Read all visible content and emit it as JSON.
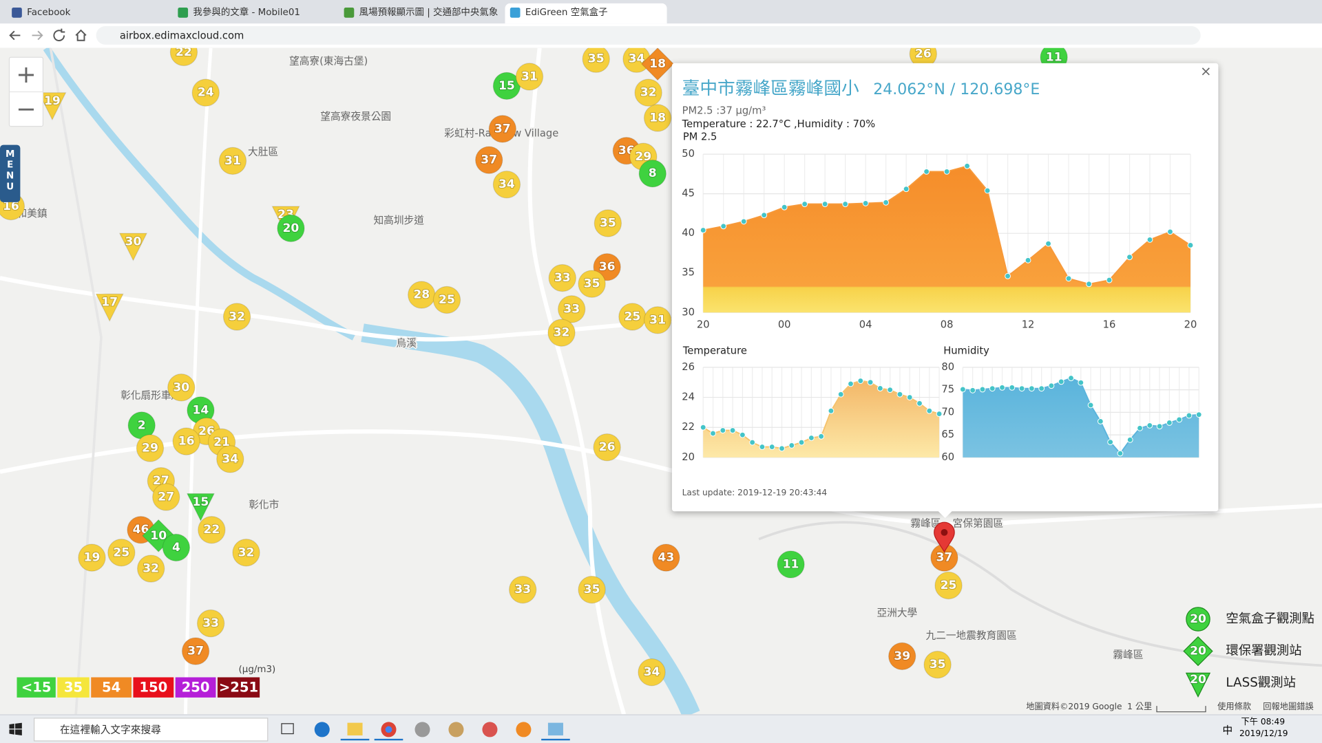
{
  "browser": {
    "tabs": [
      {
        "title": "Facebook"
      },
      {
        "title": "我參與的文章 - Mobile01"
      },
      {
        "title": "風場預報顯示圖 | 交通部中央氣象"
      },
      {
        "title": "EdiGreen 空氣盒子"
      }
    ],
    "url": "airbox.edimaxcloud.com"
  },
  "map": {
    "menu": "MENU",
    "places": [
      {
        "label": "望高寮(東海古堡)"
      },
      {
        "label": "望高寮夜景公園"
      },
      {
        "label": "大肚區"
      },
      {
        "label": "彩虹村-Rainbow Village"
      },
      {
        "label": "知高圳步道"
      },
      {
        "label": "和美鎮"
      },
      {
        "label": "彰化扇形車庫"
      },
      {
        "label": "彰化市"
      },
      {
        "label": "烏溪"
      },
      {
        "label": "霧峰區"
      },
      {
        "label": "宮保第園區"
      },
      {
        "label": "亞洲大學"
      },
      {
        "label": "九二一地震教育園區"
      },
      {
        "label": "霧峰區"
      }
    ],
    "markers": [
      {
        "value": 22,
        "color": "#f5cf3c",
        "shape": "circle"
      },
      {
        "value": 24,
        "color": "#f5cf3c",
        "shape": "circle"
      },
      {
        "value": 19,
        "color": "#f5cf3c",
        "shape": "triangle"
      },
      {
        "value": 31,
        "color": "#f5cf3c",
        "shape": "circle"
      },
      {
        "value": 16,
        "color": "#f5cf3c",
        "shape": "circle"
      },
      {
        "value": 23,
        "color": "#f5cf3c",
        "shape": "triangle"
      },
      {
        "value": 20,
        "color": "#3fd23f",
        "shape": "circle"
      },
      {
        "value": 30,
        "color": "#f5cf3c",
        "shape": "triangle"
      },
      {
        "value": 17,
        "color": "#f5cf3c",
        "shape": "triangle"
      },
      {
        "value": 32,
        "color": "#f5cf3c",
        "shape": "circle"
      },
      {
        "value": 30,
        "color": "#f5cf3c",
        "shape": "circle"
      },
      {
        "value": 14,
        "color": "#3fd23f",
        "shape": "circle"
      },
      {
        "value": 2,
        "color": "#3fd23f",
        "shape": "circle"
      },
      {
        "value": 26,
        "color": "#f5cf3c",
        "shape": "circle"
      },
      {
        "value": 29,
        "color": "#f5cf3c",
        "shape": "circle"
      },
      {
        "value": 16,
        "color": "#f5cf3c",
        "shape": "circle"
      },
      {
        "value": 21,
        "color": "#f5cf3c",
        "shape": "circle"
      },
      {
        "value": 34,
        "color": "#f5cf3c",
        "shape": "circle"
      },
      {
        "value": 27,
        "color": "#f5cf3c",
        "shape": "circle"
      },
      {
        "value": 27,
        "color": "#f5cf3c",
        "shape": "circle"
      },
      {
        "value": 15,
        "color": "#3fd23f",
        "shape": "triangle"
      },
      {
        "value": 46,
        "color": "#f08a24",
        "shape": "circle"
      },
      {
        "value": 10,
        "color": "#3fd23f",
        "shape": "diamond"
      },
      {
        "value": 4,
        "color": "#3fd23f",
        "shape": "circle"
      },
      {
        "value": 22,
        "color": "#f5cf3c",
        "shape": "circle"
      },
      {
        "value": 32,
        "color": "#f5cf3c",
        "shape": "circle"
      },
      {
        "value": 19,
        "color": "#f5cf3c",
        "shape": "circle"
      },
      {
        "value": 25,
        "color": "#f5cf3c",
        "shape": "circle"
      },
      {
        "value": 32,
        "color": "#f5cf3c",
        "shape": "circle"
      },
      {
        "value": 33,
        "color": "#f5cf3c",
        "shape": "circle"
      },
      {
        "value": 37,
        "color": "#f08a24",
        "shape": "circle"
      },
      {
        "value": 15,
        "color": "#3fd23f",
        "shape": "circle"
      },
      {
        "value": 31,
        "color": "#f5cf3c",
        "shape": "circle"
      },
      {
        "value": 37,
        "color": "#f08a24",
        "shape": "circle"
      },
      {
        "value": 37,
        "color": "#f08a24",
        "shape": "circle"
      },
      {
        "value": 34,
        "color": "#f5cf3c",
        "shape": "circle"
      },
      {
        "value": 35,
        "color": "#f5cf3c",
        "shape": "circle"
      },
      {
        "value": 34,
        "color": "#f5cf3c",
        "shape": "circle"
      },
      {
        "value": 18,
        "color": "#f08a24",
        "shape": "diamond"
      },
      {
        "value": 32,
        "color": "#f5cf3c",
        "shape": "circle"
      },
      {
        "value": 18,
        "color": "#f5cf3c",
        "shape": "circle"
      },
      {
        "value": 36,
        "color": "#f08a24",
        "shape": "circle"
      },
      {
        "value": 29,
        "color": "#f5cf3c",
        "shape": "circle"
      },
      {
        "value": 8,
        "color": "#3fd23f",
        "shape": "circle"
      },
      {
        "value": 35,
        "color": "#f5cf3c",
        "shape": "circle"
      },
      {
        "value": 36,
        "color": "#f08a24",
        "shape": "circle"
      },
      {
        "value": 33,
        "color": "#f5cf3c",
        "shape": "circle"
      },
      {
        "value": 35,
        "color": "#f5cf3c",
        "shape": "circle"
      },
      {
        "value": 28,
        "color": "#f5cf3c",
        "shape": "circle"
      },
      {
        "value": 25,
        "color": "#f5cf3c",
        "shape": "circle"
      },
      {
        "value": 33,
        "color": "#f5cf3c",
        "shape": "circle"
      },
      {
        "value": 25,
        "color": "#f5cf3c",
        "shape": "circle"
      },
      {
        "value": 31,
        "color": "#f5cf3c",
        "shape": "circle"
      },
      {
        "value": 32,
        "color": "#f5cf3c",
        "shape": "circle"
      },
      {
        "value": 26,
        "color": "#f5cf3c",
        "shape": "circle"
      },
      {
        "value": 43,
        "color": "#f08a24",
        "shape": "circle"
      },
      {
        "value": 33,
        "color": "#f5cf3c",
        "shape": "circle"
      },
      {
        "value": 35,
        "color": "#f5cf3c",
        "shape": "circle"
      },
      {
        "value": 11,
        "color": "#3fd23f",
        "shape": "circle"
      },
      {
        "value": 37,
        "color": "#f08a24",
        "shape": "circle"
      },
      {
        "value": 25,
        "color": "#f5cf3c",
        "shape": "circle"
      },
      {
        "value": 39,
        "color": "#f08a24",
        "shape": "circle"
      },
      {
        "value": 35,
        "color": "#f5cf3c",
        "shape": "circle"
      },
      {
        "value": 34,
        "color": "#f5cf3c",
        "shape": "circle"
      },
      {
        "value": 26,
        "color": "#f5cf3c",
        "shape": "circle"
      },
      {
        "value": 11,
        "color": "#3fd23f",
        "shape": "circle"
      }
    ],
    "pm_legend": {
      "items": [
        {
          "label": "<15",
          "color": "#3fd23f"
        },
        {
          "label": "35",
          "color": "#f5e63c"
        },
        {
          "label": "54",
          "color": "#f08a24"
        },
        {
          "label": "150",
          "color": "#e8101c"
        },
        {
          "label": "250",
          "color": "#b51fd8"
        },
        {
          "label": ">251",
          "color": "#8a0a14"
        }
      ],
      "unit": "(μg/m3)"
    },
    "station_legend": [
      {
        "label": "空氣盒子觀測點",
        "value": 20,
        "shape": "circle"
      },
      {
        "label": "環保署觀測站",
        "value": 20,
        "shape": "diamond"
      },
      {
        "label": "LASS觀測站",
        "value": 20,
        "shape": "triangle"
      }
    ],
    "footer": [
      "地圖資料©2019 Google",
      "1 公里",
      "使用條款",
      "回報地圖錯誤"
    ]
  },
  "popup": {
    "close": "×",
    "title": "臺中市霧峰區霧峰國小",
    "coords": "24.062°N / 120.698°E",
    "pm_line": "PM2.5 :37 μg/m³",
    "weather_line": "Temperature : 22.7°C ,Humidity : 70%",
    "last_update": "Last update: 2019-12-19 20:43:44",
    "charts": [
      {
        "type": "area",
        "title": "PM 2.5",
        "color": "#f7993a",
        "categories": [
          "20",
          null,
          null,
          null,
          "00",
          null,
          null,
          null,
          "04",
          null,
          null,
          null,
          "08",
          null,
          null,
          null,
          "12",
          null,
          null,
          null,
          "16",
          null,
          null,
          null,
          "20"
        ],
        "values": [
          40.4,
          40.9,
          41.5,
          42.3,
          43.3,
          43.7,
          43.7,
          43.7,
          43.8,
          43.9,
          45.6,
          47.8,
          47.8,
          48.5,
          45.4,
          34.6,
          36.6,
          38.7,
          34.3,
          33.6,
          34.1,
          37.0,
          39.2,
          40.2,
          38.5
        ],
        "ylim": [
          30,
          50
        ],
        "yticks": [
          30,
          35,
          40,
          45,
          50
        ],
        "grid": true
      },
      {
        "type": "area",
        "title": "Temperature",
        "color": "#f5c26b",
        "values": [
          22.0,
          21.6,
          21.8,
          21.8,
          21.5,
          21.0,
          20.7,
          20.7,
          20.6,
          20.8,
          21.0,
          21.3,
          21.4,
          23.1,
          24.2,
          24.9,
          25.1,
          25.0,
          24.6,
          24.5,
          24.2,
          24.0,
          23.6,
          23.1,
          22.9
        ],
        "ylim": [
          20,
          26
        ],
        "yticks": [
          20,
          22,
          24,
          26
        ],
        "grid": true
      },
      {
        "type": "area",
        "title": "Humidity",
        "color": "#5ab4dc",
        "values": [
          75.1,
          74.9,
          75.1,
          75.3,
          75.5,
          75.5,
          75.3,
          75.3,
          75.3,
          75.9,
          76.8,
          77.6,
          76.6,
          71.6,
          68.0,
          63.4,
          60.9,
          63.9,
          66.5,
          67.1,
          66.9,
          67.7,
          68.4,
          69.3,
          69.5
        ],
        "ylim": [
          60,
          80
        ],
        "yticks": [
          60,
          65,
          70,
          75,
          80
        ],
        "grid": true
      }
    ]
  },
  "taskbar": {
    "search": "在這裡輸入文字來搜尋",
    "ime": "中",
    "time": "下午 08:49",
    "date": "2019/12/19"
  }
}
